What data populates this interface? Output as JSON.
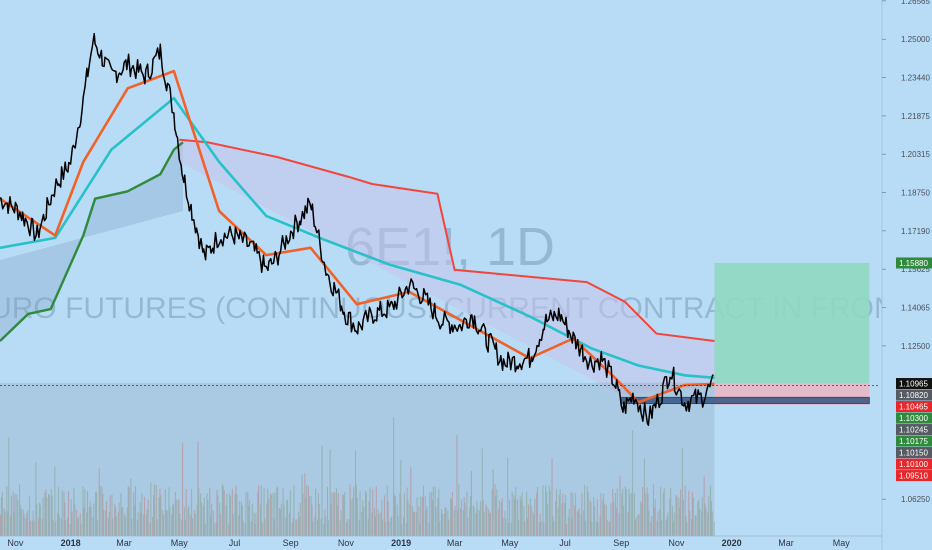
{
  "watermark": {
    "symbol": "6E1!, 1D",
    "name": "EURO FUTURES (CONTINUOUS: CURRENT CONTRACT IN FRONT)"
  },
  "colors": {
    "background": "#b9dcf6",
    "price": "#000000",
    "ma_fast": "#f0622a",
    "ma_slow": "#27c1c8",
    "upper_band": "#f2453d",
    "lower_band": "#2f8a3c",
    "target_zone": "#8fd8c0",
    "stop_zone": "#e9b7c6",
    "entry_zone": "#2d4f7e",
    "volume_up": "#8fb09a",
    "volume_down": "#d08c8c"
  },
  "chart_data": {
    "type": "line",
    "title": "",
    "xlabel": "",
    "ylabel": "",
    "ylim": [
      1.0475,
      1.266
    ],
    "x_ticks": [
      "Nov",
      "2018",
      "Mar",
      "May",
      "Jul",
      "Sep",
      "Nov",
      "2019",
      "Mar",
      "May",
      "Jul",
      "Sep",
      "Nov",
      "2020",
      "Mar",
      "May"
    ],
    "y_ticks": [
      "1.26565",
      "1.25000",
      "1.23440",
      "1.21875",
      "1.20315",
      "1.18750",
      "1.17190",
      "1.15625",
      "1.14065",
      "1.12500",
      "1.06250"
    ],
    "price_labels": [
      {
        "label": "1.15880",
        "color": "#2f8a3c"
      },
      {
        "label": "1.10965",
        "color": "#111111"
      },
      {
        "label": "1.10820",
        "color": "#555a63"
      },
      {
        "label": "1.10465",
        "color": "#e8262b"
      },
      {
        "label": "1.10300",
        "color": "#2f8a3c"
      },
      {
        "label": "1.10245",
        "color": "#555a63"
      },
      {
        "label": "1.10175",
        "color": "#2f8a3c"
      },
      {
        "label": "1.10150",
        "color": "#555a63"
      },
      {
        "label": "1.10100",
        "color": "#e8262b"
      },
      {
        "label": "1.09510",
        "color": "#e8262b"
      }
    ],
    "series": [
      {
        "key": "price",
        "x": [
          "2017-10-15",
          "2017-11-05",
          "2017-11-25",
          "2017-12-15",
          "2018-01-01",
          "2018-01-15",
          "2018-01-26",
          "2018-02-15",
          "2018-03-05",
          "2018-03-25",
          "2018-04-10",
          "2018-04-25",
          "2018-05-05",
          "2018-05-15",
          "2018-05-29",
          "2018-06-14",
          "2018-07-01",
          "2018-07-20",
          "2018-08-05",
          "2018-08-15",
          "2018-08-31",
          "2018-09-23",
          "2018-10-10",
          "2018-11-01",
          "2018-11-13",
          "2018-12-01",
          "2018-12-20",
          "2019-01-10",
          "2019-01-25",
          "2019-02-15",
          "2019-03-07",
          "2019-03-20",
          "2019-04-05",
          "2019-04-25",
          "2019-05-23",
          "2019-06-10",
          "2019-06-25",
          "2019-07-10",
          "2019-07-30",
          "2019-08-10",
          "2019-08-25",
          "2019-09-03",
          "2019-09-15",
          "2019-10-01",
          "2019-10-15",
          "2019-10-25",
          "2019-11-10",
          "2019-11-29",
          "2019-12-13"
        ],
        "values": [
          1.185,
          1.18,
          1.17,
          1.19,
          1.2,
          1.225,
          1.25,
          1.235,
          1.24,
          1.235,
          1.245,
          1.22,
          1.195,
          1.18,
          1.161,
          1.17,
          1.17,
          1.165,
          1.156,
          1.16,
          1.171,
          1.183,
          1.156,
          1.138,
          1.132,
          1.138,
          1.14,
          1.15,
          1.145,
          1.135,
          1.133,
          1.138,
          1.128,
          1.118,
          1.12,
          1.135,
          1.138,
          1.128,
          1.118,
          1.12,
          1.11,
          1.099,
          1.105,
          1.095,
          1.105,
          1.115,
          1.102,
          1.104,
          1.1097
        ]
      },
      {
        "key": "ma_fast",
        "x": [
          "2017-10-15",
          "2017-12-15",
          "2018-01-15",
          "2018-03-05",
          "2018-04-25",
          "2018-06-14",
          "2018-08-05",
          "2018-09-23",
          "2018-11-13",
          "2019-01-10",
          "2019-03-20",
          "2019-05-23",
          "2019-07-10",
          "2019-08-25",
          "2019-09-20",
          "2019-11-10",
          "2019-12-13"
        ],
        "values": [
          1.185,
          1.17,
          1.2,
          1.23,
          1.237,
          1.18,
          1.162,
          1.165,
          1.142,
          1.147,
          1.133,
          1.12,
          1.128,
          1.112,
          1.102,
          1.109,
          1.1095
        ]
      },
      {
        "key": "ma_slow",
        "x": [
          "2017-10-15",
          "2017-12-15",
          "2018-02-15",
          "2018-04-25",
          "2018-06-14",
          "2018-08-05",
          "2018-10-10",
          "2018-12-20",
          "2019-03-07",
          "2019-05-23",
          "2019-07-30",
          "2019-09-20",
          "2019-11-10",
          "2019-12-13"
        ],
        "values": [
          1.165,
          1.169,
          1.205,
          1.226,
          1.2,
          1.178,
          1.168,
          1.158,
          1.15,
          1.137,
          1.124,
          1.117,
          1.113,
          1.112
        ]
      },
      {
        "key": "upper_band",
        "x": [
          "2018-05-01",
          "2018-06-01",
          "2018-08-17",
          "2018-11-03",
          "2018-11-30",
          "2019-02-10",
          "2019-03-01",
          "2019-07-25",
          "2019-09-05",
          "2019-10-10",
          "2019-12-13"
        ],
        "values": [
          1.209,
          1.208,
          1.202,
          1.194,
          1.191,
          1.187,
          1.156,
          1.151,
          1.143,
          1.13,
          1.127
        ]
      },
      {
        "key": "lower_band",
        "x": [
          "2017-10-15",
          "2017-11-15",
          "2017-12-10",
          "2018-01-15",
          "2018-01-28",
          "2018-03-05",
          "2018-04-10",
          "2018-04-25",
          "2018-05-05"
        ],
        "values": [
          1.127,
          1.138,
          1.14,
          1.17,
          1.185,
          1.188,
          1.195,
          1.205,
          1.208
        ]
      }
    ],
    "position": {
      "target_top": 1.1588,
      "entry": 1.10965,
      "stop_bottom": 1.101,
      "box_start": "2019-12-13",
      "box_end": "2020-06-01",
      "entry_zone_top": 1.104,
      "entry_zone_bottom": 1.1015,
      "entry_zone_start": "2019-09-01"
    }
  }
}
